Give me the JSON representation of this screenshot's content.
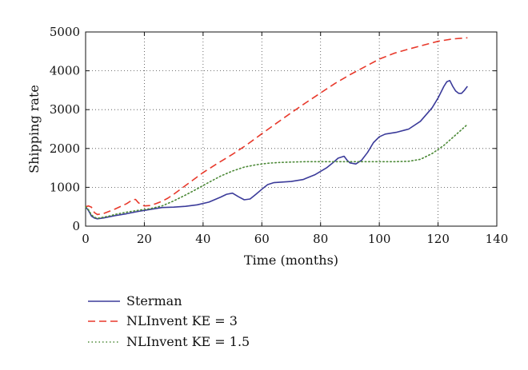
{
  "chart_data": {
    "type": "line",
    "title": "",
    "xlabel": "Time (months)",
    "ylabel": "Shipping rate",
    "xlim": [
      0,
      140
    ],
    "ylim": [
      0,
      5000
    ],
    "xticks": [
      0,
      20,
      40,
      60,
      80,
      100,
      120,
      140
    ],
    "yticks": [
      0,
      1000,
      2000,
      3000,
      4000,
      5000
    ],
    "grid": "dotted",
    "legend_position": "bottom-left",
    "series": [
      {
        "name": "Sterman",
        "color": "#3b3b9a",
        "style": "solid",
        "x": [
          0,
          1,
          2,
          3,
          4,
          6,
          8,
          10,
          14,
          18,
          22,
          26,
          30,
          34,
          38,
          42,
          46,
          48,
          50,
          52,
          54,
          56,
          58,
          60,
          62,
          64,
          66,
          70,
          74,
          78,
          82,
          84,
          86,
          88,
          89,
          90,
          92,
          94,
          96,
          98,
          100,
          102,
          106,
          110,
          114,
          118,
          120,
          122,
          123,
          124,
          125,
          126,
          127,
          128,
          129,
          130
        ],
        "y": [
          500,
          400,
          260,
          210,
          190,
          210,
          240,
          270,
          320,
          380,
          430,
          480,
          490,
          510,
          550,
          620,
          750,
          820,
          850,
          760,
          680,
          700,
          820,
          950,
          1070,
          1120,
          1130,
          1150,
          1200,
          1320,
          1500,
          1620,
          1750,
          1800,
          1700,
          1630,
          1600,
          1700,
          1900,
          2150,
          2300,
          2370,
          2420,
          2500,
          2700,
          3050,
          3300,
          3600,
          3720,
          3750,
          3600,
          3480,
          3420,
          3420,
          3500,
          3600
        ]
      },
      {
        "name": "NLInvent KE = 3",
        "color": "#e8392b",
        "style": "dashed",
        "x": [
          0,
          1,
          2,
          3,
          4,
          6,
          8,
          10,
          12,
          14,
          16,
          17,
          18,
          20,
          22,
          24,
          26,
          28,
          30,
          35,
          40,
          45,
          50,
          55,
          60,
          65,
          70,
          75,
          80,
          85,
          90,
          95,
          100,
          105,
          110,
          115,
          120,
          125,
          130
        ],
        "y": [
          500,
          520,
          490,
          350,
          300,
          320,
          380,
          440,
          510,
          580,
          680,
          690,
          600,
          520,
          530,
          580,
          640,
          720,
          820,
          1100,
          1380,
          1620,
          1850,
          2100,
          2380,
          2650,
          2920,
          3180,
          3430,
          3680,
          3900,
          4100,
          4300,
          4450,
          4560,
          4660,
          4760,
          4820,
          4850
        ]
      },
      {
        "name": "NLInvent KE = 1.5",
        "color": "#4d8a38",
        "style": "dotted",
        "x": [
          0,
          1,
          2,
          3,
          4,
          6,
          8,
          10,
          14,
          18,
          22,
          26,
          30,
          34,
          38,
          42,
          46,
          50,
          54,
          58,
          62,
          66,
          70,
          75,
          80,
          85,
          90,
          95,
          100,
          105,
          110,
          114,
          118,
          122,
          126,
          130
        ],
        "y": [
          500,
          420,
          290,
          230,
          200,
          230,
          260,
          300,
          360,
          410,
          450,
          520,
          650,
          800,
          960,
          1130,
          1290,
          1420,
          1520,
          1580,
          1620,
          1640,
          1650,
          1660,
          1660,
          1660,
          1660,
          1660,
          1660,
          1660,
          1670,
          1720,
          1870,
          2080,
          2350,
          2620
        ]
      }
    ]
  }
}
